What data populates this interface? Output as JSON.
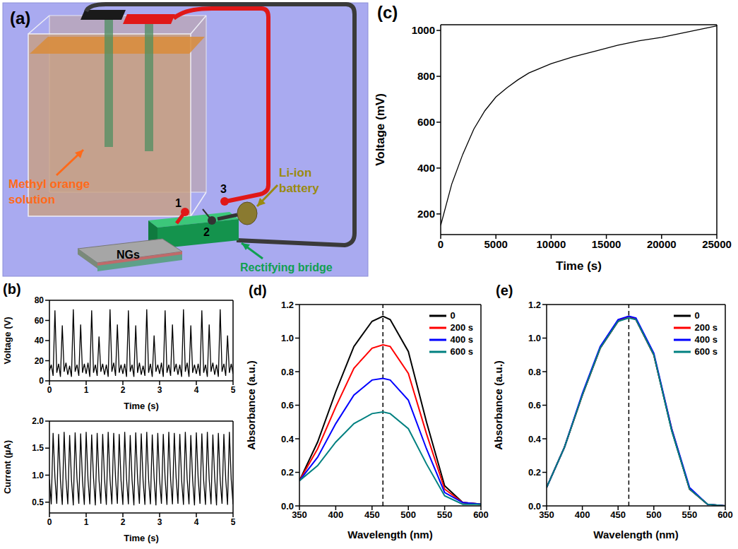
{
  "diagram": {
    "label": "(a)",
    "solution": "Methyl orange solution",
    "battery": "Li-ion battery",
    "bridge": "Rectifying bridge",
    "generators": "NGs",
    "contacts": [
      "1",
      "2",
      "3"
    ]
  },
  "chart_data": [
    {
      "type": "line",
      "label": "(b)",
      "x_label": "Time (s)",
      "y_label": "Voltage (V)",
      "x": [
        0,
        0.05,
        0.1,
        0.15,
        0.2,
        0.25,
        0.3,
        0.35,
        0.4,
        0.45,
        0.5,
        0.55,
        0.6,
        0.65,
        0.7,
        0.75,
        0.8,
        0.85,
        0.9,
        0.95,
        1,
        1.05,
        1.1,
        1.15,
        1.2,
        1.25,
        1.3,
        1.35,
        1.4,
        1.45,
        1.5,
        1.55,
        1.6,
        1.65,
        1.7,
        1.75,
        1.8,
        1.85,
        1.9,
        1.95,
        2,
        2.05,
        2.1,
        2.15,
        2.2,
        2.25,
        2.3,
        2.35,
        2.4,
        2.45,
        2.5,
        2.55,
        2.6,
        2.65,
        2.7,
        2.75,
        2.8,
        2.85,
        2.9,
        2.95,
        3,
        3.05,
        3.1,
        3.15,
        3.2,
        3.25,
        3.3,
        3.35,
        3.4,
        3.45,
        3.5,
        3.55,
        3.6,
        3.65,
        3.7,
        3.75,
        3.8,
        3.85,
        3.9,
        3.95,
        4,
        4.05,
        4.1,
        4.15,
        4.2,
        4.25,
        4.3,
        4.35,
        4.4,
        4.45,
        4.5,
        4.55,
        4.6,
        4.65,
        4.7,
        4.75,
        4.8,
        4.85,
        4.9,
        4.95,
        5
      ],
      "values": [
        10,
        16,
        5,
        70,
        8,
        17,
        4,
        55,
        9,
        18,
        6,
        15,
        4,
        71,
        9,
        16,
        5,
        56,
        8,
        17,
        7,
        18,
        4,
        70,
        8,
        16,
        5,
        44,
        9,
        17,
        6,
        16,
        4,
        71,
        9,
        18,
        5,
        56,
        8,
        16,
        7,
        17,
        4,
        70,
        9,
        16,
        4,
        55,
        8,
        18,
        6,
        15,
        5,
        71,
        8,
        17,
        4,
        45,
        9,
        16,
        7,
        18,
        4,
        70,
        8,
        16,
        5,
        56,
        9,
        17,
        6,
        16,
        4,
        71,
        9,
        18,
        4,
        55,
        8,
        16,
        7,
        17,
        5,
        70,
        8,
        16,
        4,
        56,
        9,
        18,
        6,
        16,
        4,
        71,
        9,
        17,
        5,
        45,
        8,
        17,
        7
      ],
      "color": "#000000",
      "xlim": [
        0,
        5
      ],
      "ylim": [
        0,
        80
      ],
      "xticks": [
        0,
        1,
        2,
        3,
        4,
        5
      ],
      "yticks": [
        0,
        20,
        40,
        60,
        80
      ],
      "grid": false
    },
    {
      "type": "line",
      "x_label": "Time (s)",
      "y_label": "Current (µA)",
      "x": [
        0,
        0.05,
        0.1,
        0.15,
        0.2,
        0.25,
        0.3,
        0.35,
        0.4,
        0.45,
        0.5,
        0.55,
        0.6,
        0.65,
        0.7,
        0.75,
        0.8,
        0.85,
        0.9,
        0.95,
        1,
        1.05,
        1.1,
        1.15,
        1.2,
        1.25,
        1.3,
        1.35,
        1.4,
        1.45,
        1.5,
        1.55,
        1.6,
        1.65,
        1.7,
        1.75,
        1.8,
        1.85,
        1.9,
        1.95,
        2,
        2.05,
        2.1,
        2.15,
        2.2,
        2.25,
        2.3,
        2.35,
        2.4,
        2.45,
        2.5,
        2.55,
        2.6,
        2.65,
        2.7,
        2.75,
        2.8,
        2.85,
        2.9,
        2.95,
        3,
        3.05,
        3.1,
        3.15,
        3.2,
        3.25,
        3.3,
        3.35,
        3.4,
        3.45,
        3.5,
        3.55,
        3.6,
        3.65,
        3.7,
        3.75,
        3.8,
        3.85,
        3.9,
        3.95,
        4,
        4.05,
        4.1,
        4.15,
        4.2,
        4.25,
        4.3,
        4.35,
        4.4,
        4.45,
        4.5,
        4.55,
        4.6,
        4.65,
        4.7,
        4.75,
        4.8,
        4.85,
        4.9,
        4.95,
        5
      ],
      "values": [
        0.92,
        0.46,
        1.78,
        0.95,
        0.47,
        1.76,
        0.9,
        0.45,
        1.8,
        0.93,
        0.46,
        1.74,
        0.91,
        0.44,
        1.79,
        0.94,
        0.47,
        1.77,
        0.9,
        0.45,
        1.8,
        0.92,
        0.46,
        1.75,
        0.95,
        0.44,
        1.78,
        0.91,
        0.47,
        1.76,
        0.93,
        0.45,
        1.8,
        0.92,
        0.46,
        1.78,
        0.95,
        0.47,
        1.76,
        0.9,
        0.45,
        1.8,
        0.93,
        0.46,
        1.74,
        0.91,
        0.44,
        1.79,
        0.94,
        0.47,
        1.77,
        0.9,
        0.45,
        1.8,
        0.92,
        0.46,
        1.75,
        0.95,
        0.44,
        1.78,
        0.91,
        0.47,
        1.76,
        0.93,
        0.45,
        1.8,
        0.92,
        0.46,
        1.78,
        0.95,
        0.47,
        1.76,
        0.9,
        0.45,
        1.8,
        0.93,
        0.46,
        1.74,
        0.91,
        0.44,
        1.79,
        0.94,
        0.47,
        1.77,
        0.9,
        0.45,
        1.8,
        0.92,
        0.46,
        1.75,
        0.95,
        0.44,
        1.78,
        0.91,
        0.47,
        1.76,
        0.93,
        0.45,
        1.8,
        0.92,
        0.46
      ],
      "color": "#000000",
      "xlim": [
        0,
        5
      ],
      "ylim": [
        0.3,
        2.0
      ],
      "xticks": [
        0,
        1,
        2,
        3,
        4,
        5
      ],
      "yticks": [
        0.5,
        {
          "value": 1.0,
          "label": "1.0"
        },
        1.5,
        {
          "value": 2.0,
          "label": "2.0"
        }
      ],
      "grid": false
    },
    {
      "type": "line",
      "label": "(c)",
      "x_label": "Time (s)",
      "y_label": "Voltage (mV)",
      "x": [
        0,
        1000,
        2000,
        3000,
        4000,
        5000,
        6000,
        7000,
        8000,
        9000,
        10000,
        12000,
        14000,
        16000,
        18000,
        20000,
        22000,
        24000,
        25000
      ],
      "values": [
        150,
        330,
        460,
        570,
        650,
        710,
        750,
        785,
        815,
        835,
        855,
        885,
        910,
        935,
        955,
        970,
        990,
        1010,
        1020
      ],
      "color": "#000000",
      "xlim": [
        0,
        25000
      ],
      "ylim": [
        110,
        1025
      ],
      "xticks": [
        0,
        5000,
        10000,
        15000,
        20000,
        25000
      ],
      "yticks": [
        200,
        400,
        600,
        800,
        1000
      ],
      "grid": false
    },
    {
      "type": "line",
      "label": "(d)",
      "x_label": "Wavelength (nm)",
      "y_label": "Absorbance (a.u.)",
      "x": [
        350,
        375,
        400,
        425,
        450,
        465,
        475,
        500,
        525,
        550,
        575,
        600
      ],
      "series": [
        {
          "name": "0",
          "color": "#000000",
          "values": [
            0.15,
            0.38,
            0.68,
            0.95,
            1.1,
            1.13,
            1.11,
            0.92,
            0.5,
            0.12,
            0.02,
            0.01
          ]
        },
        {
          "name": "200 s",
          "color": "#ff0000",
          "values": [
            0.15,
            0.34,
            0.59,
            0.82,
            0.94,
            0.96,
            0.95,
            0.79,
            0.43,
            0.1,
            0.02,
            0.01
          ]
        },
        {
          "name": "400 s",
          "color": "#0000ff",
          "values": [
            0.15,
            0.29,
            0.49,
            0.66,
            0.75,
            0.76,
            0.75,
            0.63,
            0.34,
            0.08,
            0.02,
            0.01
          ]
        },
        {
          "name": "600 s",
          "color": "#008080",
          "values": [
            0.15,
            0.24,
            0.38,
            0.49,
            0.55,
            0.56,
            0.55,
            0.46,
            0.25,
            0.06,
            0.01,
            0.01
          ]
        }
      ],
      "xlim": [
        350,
        600
      ],
      "ylim": [
        0,
        1.2
      ],
      "xticks": [
        350,
        400,
        450,
        500,
        550,
        600
      ],
      "yticks": [
        {
          "value": 0,
          "label": "0.0"
        },
        0.2,
        0.4,
        0.6,
        0.8,
        {
          "value": 1.0,
          "label": "1.0"
        },
        1.2
      ],
      "annotations": [
        {
          "x": 465,
          "line_style": "dashed"
        }
      ],
      "legend": "upper right",
      "grid": false
    },
    {
      "type": "line",
      "label": "(e)",
      "x_label": "Wavelength (nm)",
      "y_label": "Absorbance (a.u.)",
      "x": [
        350,
        375,
        400,
        425,
        450,
        465,
        475,
        500,
        525,
        550,
        575,
        600
      ],
      "series": [
        {
          "name": "0",
          "color": "#000000",
          "values": [
            0.11,
            0.35,
            0.66,
            0.94,
            1.1,
            1.13,
            1.11,
            0.9,
            0.45,
            0.1,
            0.01,
            0
          ]
        },
        {
          "name": "200 s",
          "color": "#ff0000",
          "values": [
            0.11,
            0.35,
            0.66,
            0.94,
            1.1,
            1.13,
            1.11,
            0.9,
            0.46,
            0.1,
            0.01,
            0
          ]
        },
        {
          "name": "400 s",
          "color": "#0000ff",
          "values": [
            0.11,
            0.35,
            0.67,
            0.95,
            1.11,
            1.13,
            1.12,
            0.91,
            0.46,
            0.11,
            0.01,
            0
          ]
        },
        {
          "name": "600 s",
          "color": "#008080",
          "values": [
            0.11,
            0.35,
            0.66,
            0.94,
            1.1,
            1.12,
            1.11,
            0.9,
            0.45,
            0.1,
            0.01,
            0
          ]
        }
      ],
      "xlim": [
        350,
        600
      ],
      "ylim": [
        0,
        1.2
      ],
      "xticks": [
        350,
        400,
        450,
        500,
        550,
        600
      ],
      "yticks": [
        {
          "value": 0,
          "label": "0.0"
        },
        0.2,
        0.4,
        0.6,
        0.8,
        {
          "value": 1.0,
          "label": "1.0"
        },
        1.2
      ],
      "annotations": [
        {
          "x": 465,
          "line_style": "dashed"
        }
      ],
      "legend": "upper right",
      "grid": false
    }
  ]
}
